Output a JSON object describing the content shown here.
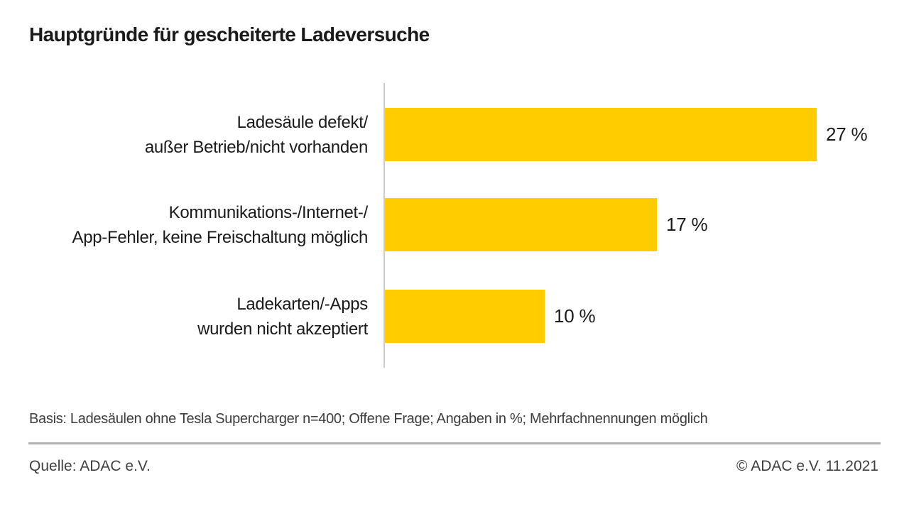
{
  "chart_data": {
    "type": "bar",
    "orientation": "horizontal",
    "title": "Hauptgründe für gescheiterte Ladeversuche",
    "categories": [
      "Ladesäule defekt/ außer Betrieb/nicht vorhanden",
      "Kommunikations-/Internet-/ App-Fehler, keine Freischaltung möglich",
      "Ladekarten/-Apps wurden nicht akzeptiert"
    ],
    "categories_lines": [
      [
        "Ladesäule defekt/",
        "außer Betrieb/nicht vorhanden"
      ],
      [
        "Kommunikations-/Internet-/",
        "App-Fehler, keine Freischaltung möglich"
      ],
      [
        "Ladekarten/-Apps",
        "wurden nicht akzeptiert"
      ]
    ],
    "values": [
      27,
      17,
      10
    ],
    "value_labels": [
      "27 %",
      "17 %",
      "10 %"
    ],
    "unit": "%",
    "xlabel": "",
    "ylabel": "",
    "xlim": [
      0,
      27
    ],
    "grid": false,
    "legend_position": "none",
    "bar_color": "#ffcc00",
    "axis_color": "#cccccc"
  },
  "footer": {
    "basis": "Basis: Ladesäulen ohne Tesla Supercharger n=400; Offene Frage; Angaben in %; Mehrfachnennungen möglich",
    "source": "Quelle: ADAC e.V.",
    "copyright": "© ADAC e.V. 11.2021"
  }
}
